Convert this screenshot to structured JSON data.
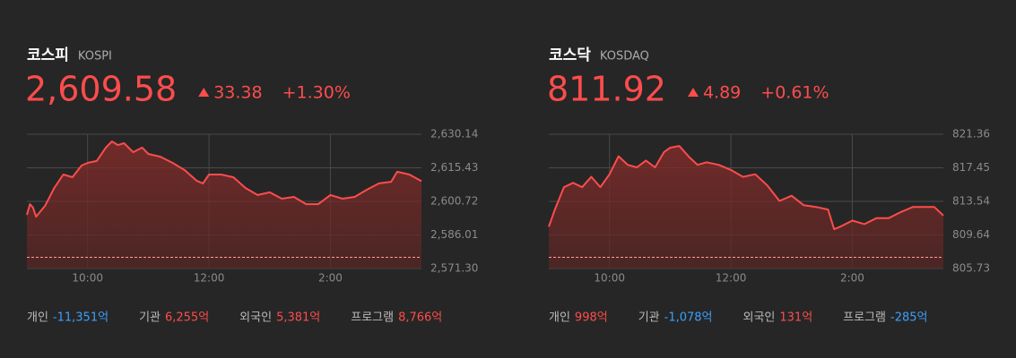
{
  "chart_data": [
    {
      "type": "area",
      "title": "코스피",
      "subtitle": "KOSPI",
      "price": "2,609.58",
      "change": "33.38",
      "change_pct": "+1.30%",
      "color": "#ff4c4c",
      "x": [
        9.0,
        9.05,
        9.1,
        9.15,
        9.3,
        9.45,
        9.6,
        9.75,
        9.9,
        10.0,
        10.15,
        10.3,
        10.4,
        10.5,
        10.6,
        10.75,
        10.9,
        11.0,
        11.2,
        11.4,
        11.6,
        11.8,
        11.9,
        12.0,
        12.2,
        12.4,
        12.6,
        12.8,
        13.0,
        13.2,
        13.4,
        13.6,
        13.8,
        14.0,
        14.2,
        14.4,
        14.6,
        14.8,
        15.0,
        15.1,
        15.3,
        15.5
      ],
      "values": [
        2594.8,
        2599.5,
        2598,
        2594,
        2598.8,
        2606.6,
        2612.5,
        2611.3,
        2616.4,
        2617.6,
        2618.4,
        2624.3,
        2627,
        2625.4,
        2626.2,
        2622.3,
        2624.3,
        2621.5,
        2620.3,
        2617.6,
        2614.4,
        2609.7,
        2608.6,
        2612.5,
        2612.5,
        2611.3,
        2606.6,
        2603.5,
        2604.7,
        2601.9,
        2602.7,
        2599.5,
        2599.5,
        2603.5,
        2601.9,
        2602.7,
        2605.8,
        2608.6,
        2609.3,
        2613.7,
        2612.5,
        2609.6
      ],
      "reference_line": 2576.2,
      "xlim": [
        9,
        15.5
      ],
      "xticks": [
        {
          "value": 10,
          "label": "10:00"
        },
        {
          "value": 12,
          "label": "12:00"
        },
        {
          "value": 14,
          "label": "2:00"
        }
      ],
      "ylim": [
        2571.3,
        2630.14
      ],
      "yticks": [
        {
          "value": 2630.14,
          "label": "2,630.14"
        },
        {
          "value": 2615.43,
          "label": "2,615.43"
        },
        {
          "value": 2600.72,
          "label": "2,600.72"
        },
        {
          "value": 2586.01,
          "label": "2,586.01"
        },
        {
          "value": 2571.3,
          "label": "2,571.30"
        }
      ],
      "grid": true,
      "flows": [
        {
          "label": "개인",
          "value": "-11,351억",
          "color": "#3aa0ff"
        },
        {
          "label": "기관",
          "value": "6,255억",
          "color": "#ff4c4c"
        },
        {
          "label": "외국인",
          "value": "5,381억",
          "color": "#ff4c4c"
        },
        {
          "label": "프로그램",
          "value": "8,766억",
          "color": "#ff4c4c"
        }
      ]
    },
    {
      "type": "area",
      "title": "코스닥",
      "subtitle": "KOSDAQ",
      "price": "811.92",
      "change": "4.89",
      "change_pct": "+0.61%",
      "color": "#ff4c4c",
      "x": [
        9.0,
        9.1,
        9.25,
        9.4,
        9.55,
        9.7,
        9.85,
        10.0,
        10.15,
        10.3,
        10.45,
        10.6,
        10.75,
        10.9,
        11.0,
        11.15,
        11.3,
        11.45,
        11.6,
        11.8,
        12.0,
        12.2,
        12.4,
        12.6,
        12.8,
        13.0,
        13.2,
        13.4,
        13.6,
        13.7,
        13.8,
        14.0,
        14.2,
        14.4,
        14.6,
        14.8,
        15.0,
        15.2,
        15.35,
        15.5
      ],
      "values": [
        810.6,
        812.6,
        815.2,
        815.7,
        815.2,
        816.4,
        815.2,
        816.7,
        818.8,
        817.8,
        817.5,
        818.3,
        817.5,
        819.3,
        819.8,
        820,
        818.8,
        817.8,
        818.1,
        817.8,
        817.2,
        816.4,
        816.7,
        815.4,
        813.6,
        814.2,
        813.1,
        812.9,
        812.6,
        810.3,
        810.6,
        811.3,
        810.9,
        811.6,
        811.6,
        812.3,
        812.9,
        812.9,
        812.9,
        811.9
      ],
      "reference_line": 807.03,
      "xlim": [
        9,
        15.5
      ],
      "xticks": [
        {
          "value": 10,
          "label": "10:00"
        },
        {
          "value": 12,
          "label": "12:00"
        },
        {
          "value": 14,
          "label": "2:00"
        }
      ],
      "ylim": [
        805.73,
        821.36
      ],
      "yticks": [
        821.36,
        817.45,
        813.54,
        809.64,
        805.73
      ],
      "grid": true,
      "flows": [
        {
          "label": "개인",
          "value": "998억",
          "color": "#ff4c4c"
        },
        {
          "label": "기관",
          "value": "-1,078억",
          "color": "#3aa0ff"
        },
        {
          "label": "외국인",
          "value": "131억",
          "color": "#ff4c4c"
        },
        {
          "label": "프로그램",
          "value": "-285억",
          "color": "#3aa0ff"
        }
      ]
    }
  ]
}
